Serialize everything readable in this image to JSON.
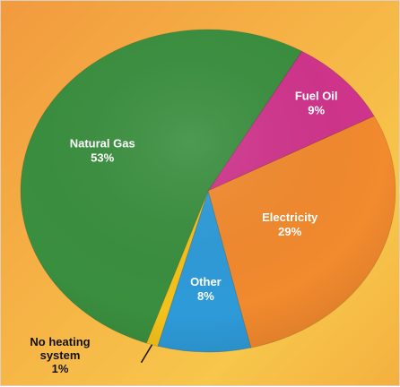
{
  "chart_data": {
    "type": "pie",
    "title": "",
    "slices": [
      {
        "label": "Natural Gas",
        "value": 53,
        "value_label": "53%",
        "color": "#3a8f3f"
      },
      {
        "label": "Fuel Oil",
        "value": 9,
        "value_label": "9%",
        "color": "#d0348c"
      },
      {
        "label": "Electricity",
        "value": 29,
        "value_label": "29%",
        "color": "#f28a2e"
      },
      {
        "label": "Other",
        "value": 8,
        "value_label": "8%",
        "color": "#2e9bd9"
      },
      {
        "label": "No heating system",
        "label_lines": [
          "No heating",
          "system"
        ],
        "value": 1,
        "value_label": "1%",
        "color": "#f4c21c"
      }
    ],
    "legend": "none"
  }
}
